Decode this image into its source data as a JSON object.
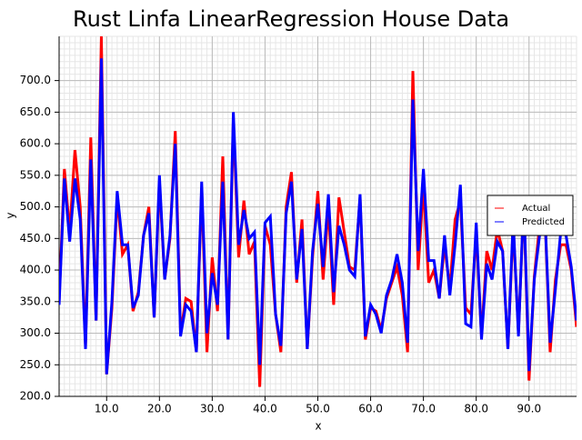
{
  "chart_data": {
    "type": "line",
    "title": "Rust Linfa LinearRegression House Data",
    "x_label": "x",
    "y_label": "y",
    "x": [
      1,
      2,
      3,
      4,
      5,
      6,
      7,
      8,
      9,
      10,
      11,
      12,
      13,
      14,
      15,
      16,
      17,
      18,
      19,
      20,
      21,
      22,
      23,
      24,
      25,
      26,
      27,
      28,
      29,
      30,
      31,
      32,
      33,
      34,
      35,
      36,
      37,
      38,
      39,
      40,
      41,
      42,
      43,
      44,
      45,
      46,
      47,
      48,
      49,
      50,
      51,
      52,
      53,
      54,
      55,
      56,
      57,
      58,
      59,
      60,
      61,
      62,
      63,
      64,
      65,
      66,
      67,
      68,
      69,
      70,
      71,
      72,
      73,
      74,
      75,
      76,
      77,
      78,
      79,
      80,
      81,
      82,
      83,
      84,
      85,
      86,
      87,
      88,
      89,
      90,
      91,
      92,
      93,
      94,
      95,
      96,
      97,
      98,
      99
    ],
    "series": [
      {
        "name": "Actual",
        "color": "#ff0000",
        "values": [
          350,
          560,
          460,
          590,
          500,
          280,
          610,
          320,
          770,
          235,
          340,
          515,
          425,
          440,
          335,
          365,
          455,
          500,
          325,
          540,
          385,
          450,
          620,
          300,
          355,
          350,
          270,
          530,
          270,
          420,
          335,
          580,
          290,
          640,
          420,
          510,
          425,
          445,
          215,
          470,
          440,
          330,
          270,
          500,
          555,
          380,
          480,
          275,
          420,
          525,
          385,
          500,
          345,
          515,
          460,
          405,
          400,
          515,
          290,
          340,
          335,
          305,
          355,
          380,
          405,
          360,
          270,
          715,
          400,
          535,
          380,
          400,
          355,
          440,
          370,
          480,
          510,
          340,
          330,
          460,
          295,
          430,
          400,
          465,
          430,
          275,
          470,
          300,
          510,
          225,
          390,
          470,
          490,
          270,
          385,
          440,
          440,
          400,
          310
        ]
      },
      {
        "name": "Predicted",
        "color": "#0000ff",
        "values": [
          345,
          545,
          445,
          545,
          480,
          275,
          575,
          320,
          735,
          235,
          350,
          525,
          440,
          440,
          340,
          360,
          455,
          490,
          325,
          550,
          385,
          455,
          600,
          295,
          345,
          335,
          270,
          540,
          300,
          395,
          345,
          540,
          290,
          650,
          440,
          495,
          450,
          460,
          250,
          475,
          485,
          330,
          280,
          490,
          540,
          385,
          465,
          275,
          430,
          505,
          405,
          520,
          365,
          470,
          440,
          400,
          390,
          520,
          295,
          345,
          330,
          300,
          360,
          385,
          425,
          380,
          285,
          670,
          430,
          560,
          415,
          415,
          355,
          455,
          360,
          440,
          535,
          315,
          310,
          475,
          290,
          410,
          385,
          445,
          430,
          275,
          480,
          295,
          515,
          240,
          385,
          455,
          490,
          285,
          370,
          460,
          455,
          405,
          320
        ]
      }
    ],
    "xlim": [
      1,
      99
    ],
    "ylim": [
      200,
      770
    ],
    "xticks": [
      {
        "value": 10,
        "label": "10.0"
      },
      {
        "value": 20,
        "label": "20.0"
      },
      {
        "value": 30,
        "label": "30.0"
      },
      {
        "value": 40,
        "label": "40.0"
      },
      {
        "value": 50,
        "label": "50.0"
      },
      {
        "value": 60,
        "label": "60.0"
      },
      {
        "value": 70,
        "label": "70.0"
      },
      {
        "value": 80,
        "label": "80.0"
      },
      {
        "value": 90,
        "label": "90.0"
      }
    ],
    "yticks": [
      {
        "value": 200,
        "label": "200.0"
      },
      {
        "value": 250,
        "label": "250.0"
      },
      {
        "value": 300,
        "label": "300.0"
      },
      {
        "value": 350,
        "label": "350.0"
      },
      {
        "value": 400,
        "label": "400.0"
      },
      {
        "value": 450,
        "label": "450.0"
      },
      {
        "value": 500,
        "label": "500.0"
      },
      {
        "value": 550,
        "label": "550.0"
      },
      {
        "value": 600,
        "label": "600.0"
      },
      {
        "value": 650,
        "label": "650.0"
      },
      {
        "value": 700,
        "label": "700.0"
      }
    ],
    "grid": true,
    "legend": "right"
  }
}
